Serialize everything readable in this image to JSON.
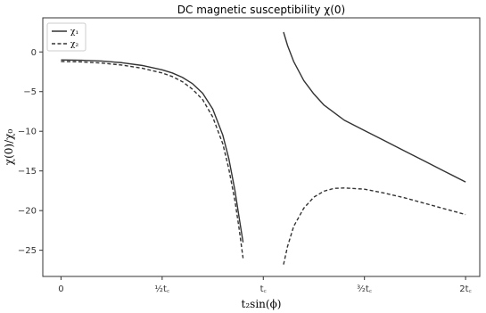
{
  "chart_data": {
    "type": "line",
    "title": "DC magnetic susceptibility χ(0)",
    "xlabel": "t₂sin(ϕ)",
    "ylabel": "χ(0)/χ₀",
    "xlim": [
      -0.09,
      2.07
    ],
    "ylim": [
      -28.3,
      4.3
    ],
    "x_ticks": [
      {
        "value": 0,
        "label": "0"
      },
      {
        "value": 0.5,
        "label": "½t꜀"
      },
      {
        "value": 1.0,
        "label": "t꜀"
      },
      {
        "value": 1.5,
        "label": "³⁄₂t꜀"
      },
      {
        "value": 2.0,
        "label": "2t꜀"
      }
    ],
    "y_ticks": [
      {
        "value": 0,
        "label": "0"
      },
      {
        "value": -5,
        "label": "−5"
      },
      {
        "value": -10,
        "label": "−10"
      },
      {
        "value": -15,
        "label": "−15"
      },
      {
        "value": -20,
        "label": "−20"
      },
      {
        "value": -25,
        "label": "−25"
      }
    ],
    "grid": false,
    "legend_position": "top-left",
    "series": [
      {
        "name": "χ₁",
        "style": "solid",
        "color": "#333333",
        "segments": [
          [
            [
              0.0,
              -1.0
            ],
            [
              0.1,
              -1.05
            ],
            [
              0.2,
              -1.15
            ],
            [
              0.3,
              -1.35
            ],
            [
              0.4,
              -1.7
            ],
            [
              0.5,
              -2.25
            ],
            [
              0.55,
              -2.65
            ],
            [
              0.6,
              -3.2
            ],
            [
              0.65,
              -4.0
            ],
            [
              0.7,
              -5.2
            ],
            [
              0.75,
              -7.2
            ],
            [
              0.8,
              -10.5
            ],
            [
              0.83,
              -13.5
            ],
            [
              0.86,
              -17.5
            ],
            [
              0.88,
              -20.8
            ],
            [
              0.9,
              -24.0
            ]
          ],
          [
            [
              1.1,
              2.5
            ],
            [
              1.12,
              0.8
            ],
            [
              1.15,
              -1.2
            ],
            [
              1.2,
              -3.6
            ],
            [
              1.25,
              -5.3
            ],
            [
              1.3,
              -6.7
            ],
            [
              1.4,
              -8.6
            ],
            [
              1.5,
              -9.9
            ],
            [
              1.6,
              -11.2
            ],
            [
              1.7,
              -12.5
            ],
            [
              1.8,
              -13.8
            ],
            [
              1.9,
              -15.1
            ],
            [
              2.0,
              -16.4
            ]
          ]
        ]
      },
      {
        "name": "χ₂",
        "style": "dashed",
        "color": "#333333",
        "segments": [
          [
            [
              0.0,
              -1.2
            ],
            [
              0.1,
              -1.25
            ],
            [
              0.2,
              -1.4
            ],
            [
              0.3,
              -1.65
            ],
            [
              0.4,
              -2.05
            ],
            [
              0.5,
              -2.65
            ],
            [
              0.55,
              -3.1
            ],
            [
              0.6,
              -3.75
            ],
            [
              0.65,
              -4.7
            ],
            [
              0.7,
              -6.0
            ],
            [
              0.75,
              -8.2
            ],
            [
              0.8,
              -11.6
            ],
            [
              0.83,
              -14.8
            ],
            [
              0.86,
              -18.8
            ],
            [
              0.88,
              -22.2
            ],
            [
              0.9,
              -26.0
            ]
          ],
          [
            [
              1.1,
              -26.8
            ],
            [
              1.12,
              -24.5
            ],
            [
              1.15,
              -22.0
            ],
            [
              1.2,
              -19.7
            ],
            [
              1.25,
              -18.3
            ],
            [
              1.3,
              -17.55
            ],
            [
              1.35,
              -17.2
            ],
            [
              1.4,
              -17.15
            ],
            [
              1.5,
              -17.3
            ],
            [
              1.6,
              -17.8
            ],
            [
              1.7,
              -18.4
            ],
            [
              1.8,
              -19.1
            ],
            [
              1.9,
              -19.8
            ],
            [
              2.0,
              -20.5
            ]
          ]
        ]
      }
    ]
  }
}
